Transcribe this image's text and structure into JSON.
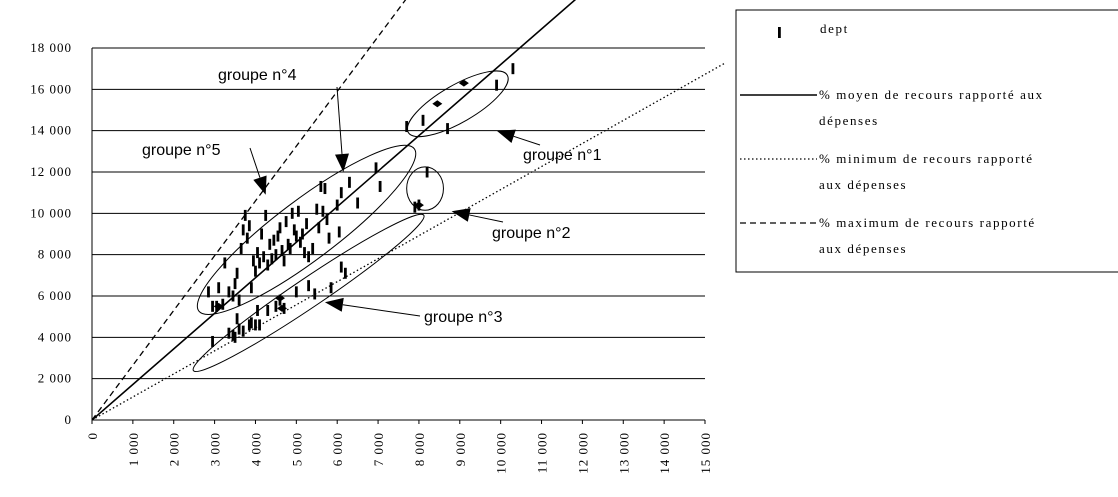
{
  "chart_data": {
    "type": "scatter",
    "title": "",
    "xlabel": "",
    "ylabel": "",
    "xlim": [
      0,
      15000
    ],
    "ylim": [
      0,
      18000
    ],
    "grid": "horizontal",
    "legend_position": "right",
    "x_ticks": [
      "0",
      "1 000",
      "2 000",
      "3 000",
      "4 000",
      "5 000",
      "6 000",
      "7 000",
      "8 000",
      "9 000",
      "10 000",
      "11 000",
      "12 000",
      "13 000",
      "14 000",
      "15 000"
    ],
    "x_tick_values": [
      0,
      1000,
      2000,
      3000,
      4000,
      5000,
      6000,
      7000,
      8000,
      9000,
      10000,
      11000,
      12000,
      13000,
      14000,
      15000
    ],
    "y_ticks": [
      "0",
      "2 000",
      "4 000",
      "6 000",
      "8 000",
      "10 000",
      "12 000",
      "14 000",
      "16 000",
      "18 000"
    ],
    "y_tick_values": [
      0,
      2000,
      4000,
      6000,
      8000,
      10000,
      12000,
      14000,
      16000,
      18000
    ],
    "series": [
      {
        "name": "dept",
        "marker": "vertical-bar",
        "points": [
          [
            2850,
            6200
          ],
          [
            2950,
            5500
          ],
          [
            3050,
            5500
          ],
          [
            3100,
            6400
          ],
          [
            3200,
            5600
          ],
          [
            3250,
            7600
          ],
          [
            3350,
            6200
          ],
          [
            3450,
            6000
          ],
          [
            3500,
            6600
          ],
          [
            3550,
            7100
          ],
          [
            3600,
            5800
          ],
          [
            3650,
            8300
          ],
          [
            3700,
            9200
          ],
          [
            3750,
            9900
          ],
          [
            3800,
            8800
          ],
          [
            3850,
            9400
          ],
          [
            3900,
            6400
          ],
          [
            3950,
            7700
          ],
          [
            4000,
            7200
          ],
          [
            4050,
            8100
          ],
          [
            4100,
            7600
          ],
          [
            4150,
            9000
          ],
          [
            4200,
            7900
          ],
          [
            4250,
            9900
          ],
          [
            4300,
            7500
          ],
          [
            4350,
            8500
          ],
          [
            4400,
            7800
          ],
          [
            4450,
            8700
          ],
          [
            4500,
            8000
          ],
          [
            4550,
            8900
          ],
          [
            4600,
            9300
          ],
          [
            4650,
            8200
          ],
          [
            4700,
            7700
          ],
          [
            4750,
            9600
          ],
          [
            4800,
            8500
          ],
          [
            4850,
            8300
          ],
          [
            4900,
            10000
          ],
          [
            4950,
            9200
          ],
          [
            5000,
            8900
          ],
          [
            5050,
            10100
          ],
          [
            5100,
            8600
          ],
          [
            5150,
            9000
          ],
          [
            5200,
            8100
          ],
          [
            5250,
            9500
          ],
          [
            5300,
            7900
          ],
          [
            5400,
            8300
          ],
          [
            5500,
            10200
          ],
          [
            5550,
            9300
          ],
          [
            5600,
            11300
          ],
          [
            5650,
            10100
          ],
          [
            5700,
            11200
          ],
          [
            5750,
            9700
          ],
          [
            5800,
            8800
          ],
          [
            6000,
            10400
          ],
          [
            6050,
            9100
          ],
          [
            6100,
            11000
          ],
          [
            6300,
            11500
          ],
          [
            6500,
            10500
          ],
          [
            6950,
            12200
          ],
          [
            7050,
            11300
          ],
          [
            3350,
            4200
          ],
          [
            3450,
            4100
          ],
          [
            3550,
            4900
          ],
          [
            3600,
            4400
          ],
          [
            3700,
            4300
          ],
          [
            3850,
            4600
          ],
          [
            3900,
            4700
          ],
          [
            4050,
            5300
          ],
          [
            4100,
            4600
          ],
          [
            4300,
            5300
          ],
          [
            4500,
            5500
          ],
          [
            4600,
            5800
          ],
          [
            4700,
            5400
          ],
          [
            5000,
            6200
          ],
          [
            5300,
            6500
          ],
          [
            5450,
            6100
          ],
          [
            5850,
            6400
          ],
          [
            6100,
            7400
          ],
          [
            6200,
            7100
          ],
          [
            4000,
            4600
          ],
          [
            3500,
            4000
          ],
          [
            2950,
            3800
          ],
          [
            7700,
            14200
          ],
          [
            8100,
            14500
          ],
          [
            8700,
            14100
          ],
          [
            9900,
            16200
          ],
          [
            10300,
            17000
          ],
          [
            8200,
            12000
          ],
          [
            8000,
            10400
          ],
          [
            7900,
            10300
          ]
        ]
      }
    ],
    "diamonds": [
      [
        3100,
        5500
      ],
      [
        4600,
        5900
      ],
      [
        4650,
        5400
      ],
      [
        8000,
        10400
      ],
      [
        8450,
        15300
      ],
      [
        9100,
        16300
      ]
    ],
    "lines": [
      {
        "name": "% moyen de recours rapporté aux dépenses",
        "style": "solid",
        "slope": 1.72
      },
      {
        "name": "% minimum de recours rapporté aux dépenses",
        "style": "dotted",
        "slope": 1.115
      },
      {
        "name": "% maximum de recours rapporté aux dépenses",
        "style": "dashed",
        "slope": 2.65
      }
    ],
    "annotations": [
      {
        "label": "groupe n°4",
        "center": [
          5250,
          9200
        ],
        "rx": 3300,
        "ry": 1450,
        "angle_deg": 37,
        "arrow_to": [
          6150,
          12000
        ]
      },
      {
        "label": "groupe n°5",
        "center": null,
        "arrow_to": [
          4250,
          10900
        ]
      },
      {
        "label": "groupe n°1",
        "center": [
          8950,
          15300
        ],
        "rx": 1400,
        "ry": 900,
        "angle_deg": 30,
        "arrow_to": [
          9900,
          14000
        ]
      },
      {
        "label": "groupe n°2",
        "center": [
          8150,
          11200
        ],
        "rx": 450,
        "ry": 1050,
        "angle_deg": 0,
        "arrow_to": [
          8800,
          10100
        ]
      },
      {
        "label": "groupe n°3",
        "center": [
          5300,
          6150
        ],
        "rx": 3400,
        "ry": 700,
        "angle_deg": 34,
        "arrow_to": [
          5700,
          5700
        ]
      }
    ],
    "legend": [
      {
        "key": "dept",
        "label": "dept",
        "label2": ""
      },
      {
        "key": "moyen",
        "label": "% moyen de recours rapporté aux",
        "label2": "dépenses"
      },
      {
        "key": "minimum",
        "label": "% minimum de recours rapporté",
        "label2": "aux dépenses"
      },
      {
        "key": "maximum",
        "label": "% maximum de recours rapporté",
        "label2": "aux dépenses"
      }
    ]
  }
}
